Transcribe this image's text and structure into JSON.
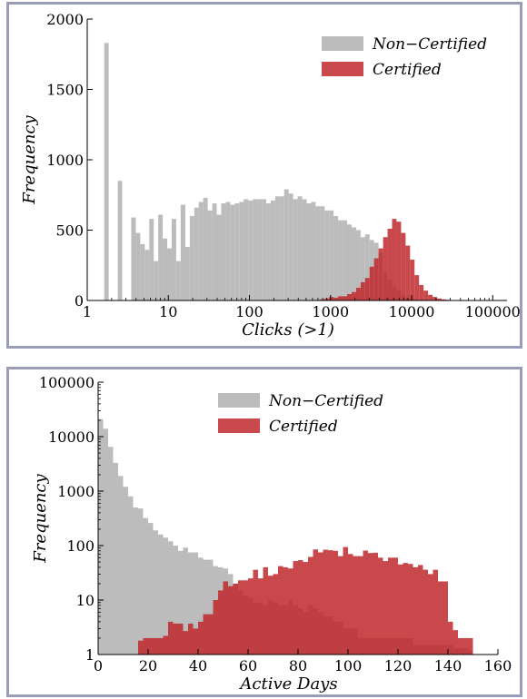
{
  "chart_data": [
    {
      "type": "bar",
      "title": "",
      "xlabel": "Clicks (>1)",
      "ylabel": "Frequency",
      "xscale": "log",
      "xlim": [
        1,
        150000
      ],
      "ylim": [
        0,
        2000
      ],
      "xticks": [
        {
          "value": 1,
          "label": "1"
        },
        {
          "value": 10,
          "label": "10"
        },
        {
          "value": 100,
          "label": "100"
        },
        {
          "value": 1000,
          "label": "1000"
        },
        {
          "value": 10000,
          "label": "10000"
        },
        {
          "value": 100000,
          "label": "100000"
        }
      ],
      "yticks": [
        {
          "value": 0,
          "label": "0"
        },
        {
          "value": 500,
          "label": "500"
        },
        {
          "value": 1000,
          "label": "1000"
        },
        {
          "value": 1500,
          "label": "1500"
        },
        {
          "value": 2000,
          "label": "2000"
        }
      ],
      "legend": "top-right",
      "grid": false,
      "series": [
        {
          "name": "Non−Certified",
          "color": "#bcbcbc",
          "bins": [
            [
              1.62,
              1.84,
              1830
            ],
            [
              1.84,
              2.09,
              0
            ],
            [
              2.09,
              2.38,
              0
            ],
            [
              2.38,
              2.7,
              850
            ],
            [
              2.7,
              3.07,
              0
            ],
            [
              3.07,
              3.49,
              0
            ],
            [
              3.49,
              3.97,
              590
            ],
            [
              3.97,
              4.51,
              480
            ],
            [
              4.51,
              5.12,
              400
            ],
            [
              5.12,
              5.82,
              360
            ],
            [
              5.82,
              6.61,
              580
            ],
            [
              6.61,
              7.51,
              280
            ],
            [
              7.51,
              8.53,
              610
            ],
            [
              8.53,
              9.69,
              440
            ],
            [
              9.69,
              11.0,
              370
            ],
            [
              11.0,
              12.5,
              580
            ],
            [
              12.5,
              14.2,
              280
            ],
            [
              14.2,
              16.2,
              680
            ],
            [
              16.2,
              18.4,
              380
            ],
            [
              18.4,
              20.9,
              600
            ],
            [
              20.9,
              23.7,
              660
            ],
            [
              23.7,
              26.9,
              700
            ],
            [
              26.9,
              30.6,
              730
            ],
            [
              30.6,
              34.8,
              640
            ],
            [
              34.8,
              39.5,
              690
            ],
            [
              39.5,
              44.9,
              610
            ],
            [
              44.9,
              51.0,
              690
            ],
            [
              51.0,
              57.9,
              700
            ],
            [
              57.9,
              65.8,
              680
            ],
            [
              65.8,
              74.8,
              690
            ],
            [
              74.8,
              84.9,
              700
            ],
            [
              84.9,
              96.5,
              720
            ],
            [
              96.5,
              110,
              710
            ],
            [
              110,
              125,
              720
            ],
            [
              125,
              142,
              720
            ],
            [
              142,
              161,
              720
            ],
            [
              161,
              183,
              690
            ],
            [
              183,
              208,
              710
            ],
            [
              208,
              236,
              740
            ],
            [
              236,
              268,
              740
            ],
            [
              268,
              305,
              790
            ],
            [
              305,
              346,
              760
            ],
            [
              346,
              393,
              720
            ],
            [
              393,
              447,
              740
            ],
            [
              447,
              508,
              720
            ],
            [
              508,
              577,
              690
            ],
            [
              577,
              655,
              700
            ],
            [
              655,
              745,
              670
            ],
            [
              745,
              846,
              670
            ],
            [
              846,
              961,
              640
            ],
            [
              961,
              1090,
              640
            ],
            [
              1090,
              1240,
              600
            ],
            [
              1240,
              1410,
              570
            ],
            [
              1410,
              1600,
              570
            ],
            [
              1600,
              1820,
              540
            ],
            [
              1820,
              2070,
              520
            ],
            [
              2070,
              2350,
              500
            ],
            [
              2350,
              2670,
              450
            ],
            [
              2670,
              3030,
              470
            ],
            [
              3030,
              3440,
              430
            ],
            [
              3440,
              3910,
              410
            ],
            [
              3910,
              4450,
              340
            ],
            [
              4450,
              5050,
              200
            ],
            [
              5050,
              5740,
              150
            ],
            [
              5740,
              6520,
              100
            ],
            [
              6520,
              7410,
              70
            ],
            [
              7410,
              8420,
              40
            ],
            [
              8420,
              9560,
              20
            ],
            [
              9560,
              10860,
              10
            ],
            [
              10860,
              12340,
              5
            ]
          ]
        },
        {
          "name": "Certified",
          "color": "#c0282c",
          "bins": [
            [
              655,
              745,
              4
            ],
            [
              745,
              846,
              8
            ],
            [
              846,
              961,
              15
            ],
            [
              961,
              1090,
              25
            ],
            [
              1090,
              1240,
              20
            ],
            [
              1240,
              1410,
              30
            ],
            [
              1410,
              1600,
              30
            ],
            [
              1600,
              1820,
              45
            ],
            [
              1820,
              2070,
              60
            ],
            [
              2070,
              2350,
              90
            ],
            [
              2350,
              2670,
              130
            ],
            [
              2670,
              3030,
              160
            ],
            [
              3030,
              3440,
              240
            ],
            [
              3440,
              3910,
              300
            ],
            [
              3910,
              4450,
              370
            ],
            [
              4450,
              5050,
              450
            ],
            [
              5050,
              5740,
              510
            ],
            [
              5740,
              6520,
              580
            ],
            [
              6520,
              7410,
              560
            ],
            [
              7410,
              8420,
              480
            ],
            [
              8420,
              9560,
              390
            ],
            [
              9560,
              10860,
              290
            ],
            [
              10860,
              12340,
              180
            ],
            [
              12340,
              14020,
              110
            ],
            [
              14020,
              15930,
              70
            ],
            [
              15930,
              18100,
              40
            ],
            [
              18100,
              20570,
              25
            ],
            [
              20570,
              23370,
              14
            ],
            [
              23370,
              26550,
              8
            ],
            [
              26550,
              30170,
              5
            ],
            [
              30170,
              34280,
              3
            ],
            [
              34280,
              38950,
              2
            ],
            [
              38950,
              44260,
              1
            ],
            [
              44260,
              50290,
              1
            ]
          ]
        }
      ]
    },
    {
      "type": "bar",
      "title": "",
      "xlabel": "Active Days",
      "ylabel": "Frequency",
      "yscale": "log",
      "xlim": [
        0,
        160
      ],
      "ylim": [
        1,
        100000
      ],
      "xticks": [
        {
          "value": 0,
          "label": "0"
        },
        {
          "value": 20,
          "label": "20"
        },
        {
          "value": 40,
          "label": "40"
        },
        {
          "value": 60,
          "label": "60"
        },
        {
          "value": 80,
          "label": "80"
        },
        {
          "value": 100,
          "label": "100"
        },
        {
          "value": 120,
          "label": "120"
        },
        {
          "value": 140,
          "label": "140"
        },
        {
          "value": 160,
          "label": "160"
        }
      ],
      "yticks": [
        {
          "value": 1,
          "label": "1"
        },
        {
          "value": 10,
          "label": "10"
        },
        {
          "value": 100,
          "label": "100"
        },
        {
          "value": 1000,
          "label": "1000"
        },
        {
          "value": 10000,
          "label": "10000"
        },
        {
          "value": 100000,
          "label": "100000"
        }
      ],
      "legend": "top-right",
      "grid": false,
      "bin_start": 0,
      "bin_width": 2,
      "series": [
        {
          "name": "Non−Certified",
          "color": "#bcbcbc",
          "values": [
            21000,
            14000,
            6500,
            3300,
            1900,
            1200,
            800,
            500,
            480,
            320,
            260,
            190,
            160,
            140,
            120,
            100,
            80,
            92,
            75,
            75,
            60,
            55,
            55,
            42,
            40,
            38,
            30,
            20,
            15,
            12,
            11,
            9,
            9,
            8,
            10,
            9,
            8,
            8,
            10,
            8,
            7,
            6,
            8,
            7,
            6,
            5,
            5,
            4,
            4,
            3,
            3,
            3,
            2,
            2,
            2,
            2,
            2,
            2,
            2,
            2,
            2,
            2,
            2,
            1.5,
            1.5,
            1.5,
            1.5,
            1.5,
            1.5,
            1.5,
            1.5,
            1.3,
            1.3,
            1.3,
            1.2
          ]
        },
        {
          "name": "Certified",
          "color": "#c0282c",
          "values": [
            0,
            0,
            0,
            0,
            0,
            0,
            0,
            0,
            1.8,
            2,
            2,
            2,
            2,
            2.2,
            4,
            3.7,
            3.7,
            2.7,
            3.7,
            3,
            4,
            5.5,
            5.5,
            10,
            15,
            22,
            18,
            20,
            23,
            23,
            25,
            36,
            25,
            40,
            28,
            30,
            42,
            40,
            38,
            52,
            54,
            50,
            62,
            85,
            75,
            84,
            82,
            80,
            64,
            94,
            70,
            64,
            64,
            81,
            73,
            74,
            60,
            52,
            60,
            60,
            45,
            48,
            46,
            40,
            44,
            36,
            30,
            36,
            22,
            22,
            4,
            2.8,
            2,
            2,
            2
          ]
        }
      ]
    }
  ]
}
